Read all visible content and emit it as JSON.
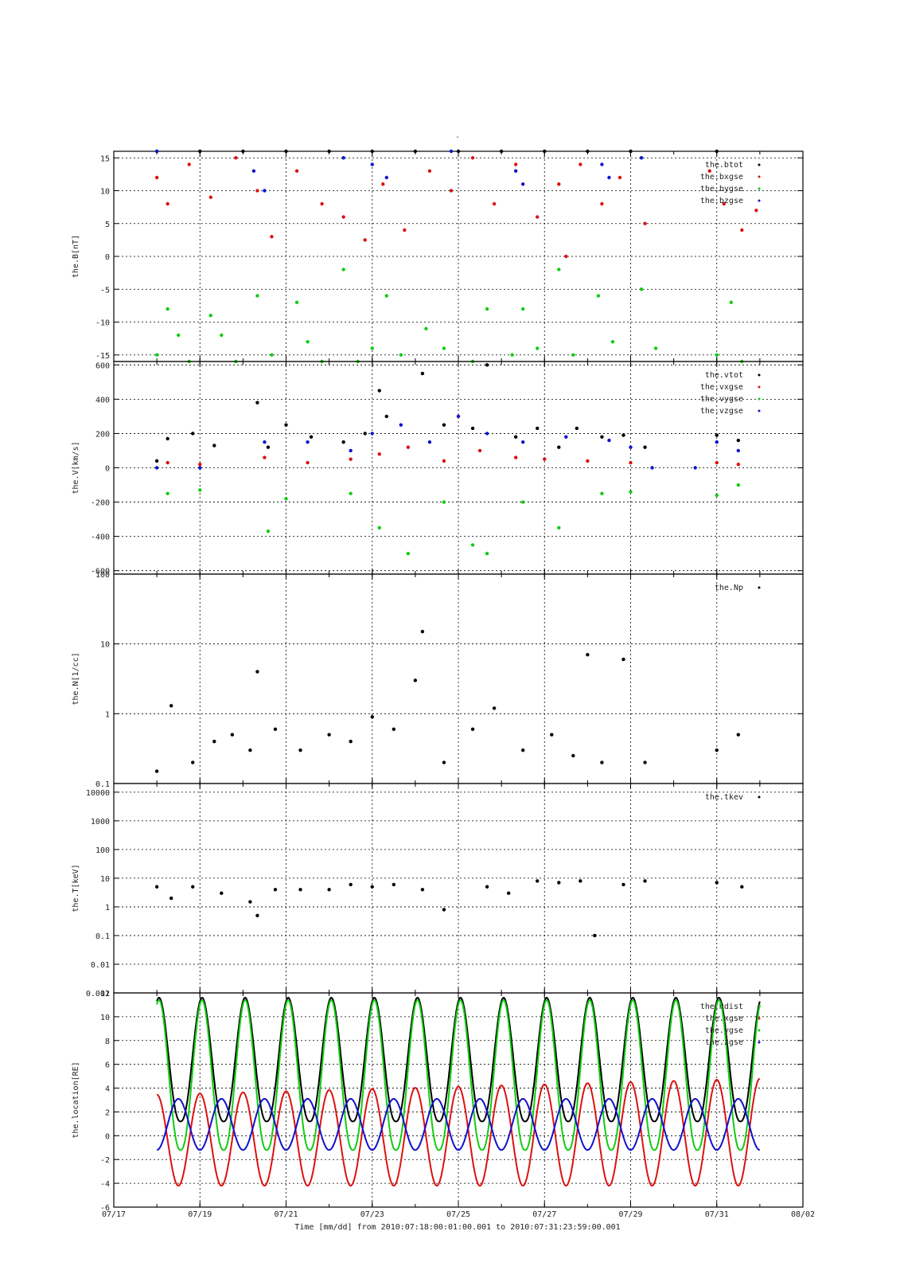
{
  "figure": {
    "title": "-",
    "xlabel": "Time [mm/dd]  from 2010:07:18:00:01:00.001  to  2010:07:31:23:59:00.001",
    "x_ticks": [
      "07/17",
      "07/19",
      "07/21",
      "07/23",
      "07/25",
      "07/27",
      "07/29",
      "07/31",
      "08/02"
    ],
    "xlim_days": [
      "07/17",
      "08/02"
    ],
    "grid": true
  },
  "chart_data": [
    {
      "id": "B",
      "type": "scatter",
      "ylabel": "the.B[nT]",
      "ylim": [
        -16,
        16
      ],
      "y_scale": "linear",
      "y_ticks": [
        -15,
        -10,
        -5,
        0,
        5,
        10,
        15
      ],
      "legend_position": "top-right",
      "series": [
        {
          "name": "the.btot",
          "color": "#000000",
          "x": [
            "07/18 00:00",
            "07/19 00:00",
            "07/20 00:00",
            "07/21 00:00",
            "07/22 00:00",
            "07/23 00:00",
            "07/24 00:00",
            "07/25 00:00",
            "07/26 00:00",
            "07/27 00:00",
            "07/28 00:00",
            "07/29 00:00",
            "07/31 00:00"
          ],
          "y": [
            16,
            16,
            16,
            16,
            16,
            16,
            16,
            16,
            16,
            16,
            16,
            16,
            16
          ]
        },
        {
          "name": "the.bxgse",
          "color": "#dd1111",
          "x": [
            "07/18 00:00",
            "07/18 06:00",
            "07/18 18:00",
            "07/19 06:00",
            "07/19 20:00",
            "07/20 08:00",
            "07/20 16:00",
            "07/21 06:00",
            "07/21 20:00",
            "07/22 08:00",
            "07/22 20:00",
            "07/23 06:00",
            "07/23 18:00",
            "07/24 08:00",
            "07/24 20:00",
            "07/25 08:00",
            "07/25 20:00",
            "07/26 08:00",
            "07/26 20:00",
            "07/27 08:00",
            "07/27 12:00",
            "07/27 20:00",
            "07/28 08:00",
            "07/28 18:00",
            "07/29 08:00",
            "07/30 20:00",
            "07/31 04:00",
            "07/31 14:00",
            "07/31 22:00"
          ],
          "y": [
            12,
            8,
            14,
            9,
            15,
            10,
            3,
            13,
            8,
            6,
            2.5,
            11,
            4,
            13,
            10,
            15,
            8,
            14,
            6,
            11,
            0,
            14,
            8,
            12,
            5,
            13,
            8,
            4,
            7
          ]
        },
        {
          "name": "the.bygse",
          "color": "#11cc11",
          "x": [
            "07/18 00:00",
            "07/18 06:00",
            "07/18 12:00",
            "07/18 18:00",
            "07/19 06:00",
            "07/19 12:00",
            "07/19 20:00",
            "07/20 08:00",
            "07/20 16:00",
            "07/21 06:00",
            "07/21 12:00",
            "07/21 20:00",
            "07/22 08:00",
            "07/22 16:00",
            "07/23 00:00",
            "07/23 08:00",
            "07/23 16:00",
            "07/24 06:00",
            "07/24 16:00",
            "07/25 08:00",
            "07/25 16:00",
            "07/26 06:00",
            "07/26 12:00",
            "07/26 20:00",
            "07/27 08:00",
            "07/27 16:00",
            "07/28 06:00",
            "07/28 14:00",
            "07/29 06:00",
            "07/29 14:00",
            "07/31 00:00",
            "07/31 08:00",
            "07/31 14:00"
          ],
          "y": [
            -15,
            -8,
            -12,
            -16,
            -9,
            -12,
            -16,
            -6,
            -15,
            -7,
            -13,
            -16,
            -2,
            -16,
            -14,
            -6,
            -15,
            -11,
            -14,
            -16,
            -8,
            -15,
            -8,
            -14,
            -2,
            -15,
            -6,
            -13,
            -5,
            -14,
            -15,
            -7,
            -16
          ]
        },
        {
          "name": "the.bzgse",
          "color": "#1111cc",
          "x": [
            "07/18 00:00",
            "07/20 06:00",
            "07/20 12:00",
            "07/22 08:00",
            "07/23 00:00",
            "07/23 08:00",
            "07/24 20:00",
            "07/26 08:00",
            "07/26 12:00",
            "07/28 08:00",
            "07/28 12:00",
            "07/29 06:00"
          ],
          "y": [
            16,
            13,
            10,
            15,
            14,
            12,
            16,
            13,
            11,
            14,
            12,
            15
          ]
        }
      ]
    },
    {
      "id": "V",
      "type": "scatter",
      "ylabel": "the.V[km/s]",
      "ylim": [
        -620,
        620
      ],
      "y_scale": "linear",
      "y_ticks": [
        -600,
        -400,
        -200,
        0,
        200,
        400,
        600
      ],
      "legend_position": "top-right",
      "series": [
        {
          "name": "the.vtot",
          "color": "#000000",
          "x": [
            "07/18 00:00",
            "07/18 06:00",
            "07/18 20:00",
            "07/19 08:00",
            "07/20 08:00",
            "07/20 14:00",
            "07/21 00:00",
            "07/21 14:00",
            "07/22 08:00",
            "07/22 20:00",
            "07/23 04:00",
            "07/23 08:00",
            "07/24 04:00",
            "07/24 16:00",
            "07/25 08:00",
            "07/25 16:00",
            "07/26 08:00",
            "07/26 20:00",
            "07/27 08:00",
            "07/27 18:00",
            "07/28 08:00",
            "07/28 20:00",
            "07/29 08:00",
            "07/31 00:00",
            "07/31 12:00"
          ],
          "y": [
            40,
            170,
            200,
            130,
            380,
            120,
            250,
            180,
            150,
            200,
            450,
            300,
            550,
            250,
            230,
            600,
            180,
            230,
            120,
            230,
            180,
            190,
            120,
            190,
            160
          ]
        },
        {
          "name": "the.vxgse",
          "color": "#dd1111",
          "x": [
            "07/18 06:00",
            "07/19 00:00",
            "07/20 12:00",
            "07/21 12:00",
            "07/22 12:00",
            "07/23 04:00",
            "07/23 20:00",
            "07/24 16:00",
            "07/25 12:00",
            "07/26 08:00",
            "07/27 00:00",
            "07/28 00:00",
            "07/29 00:00",
            "07/31 00:00",
            "07/31 12:00"
          ],
          "y": [
            30,
            20,
            60,
            30,
            50,
            80,
            120,
            40,
            100,
            60,
            50,
            40,
            30,
            30,
            20
          ]
        },
        {
          "name": "the.vygse",
          "color": "#11cc11",
          "x": [
            "07/18 06:00",
            "07/19 00:00",
            "07/20 14:00",
            "07/21 00:00",
            "07/22 12:00",
            "07/23 04:00",
            "07/23 20:00",
            "07/24 16:00",
            "07/25 08:00",
            "07/25 16:00",
            "07/26 12:00",
            "07/27 08:00",
            "07/28 08:00",
            "07/29 00:00",
            "07/31 00:00",
            "07/31 12:00"
          ],
          "y": [
            -150,
            -130,
            -370,
            -180,
            -150,
            -350,
            -500,
            -200,
            -450,
            -500,
            -200,
            -350,
            -150,
            -140,
            -160,
            -100
          ]
        },
        {
          "name": "the.vzgse",
          "color": "#1111cc",
          "x": [
            "07/18 00:00",
            "07/19 00:00",
            "07/20 12:00",
            "07/21 12:00",
            "07/22 12:00",
            "07/23 00:00",
            "07/23 16:00",
            "07/24 08:00",
            "07/25 00:00",
            "07/25 16:00",
            "07/26 12:00",
            "07/27 12:00",
            "07/28 12:00",
            "07/29 00:00",
            "07/29 12:00",
            "07/30 12:00",
            "07/31 00:00",
            "07/31 12:00"
          ],
          "y": [
            0,
            0,
            150,
            150,
            100,
            200,
            250,
            150,
            300,
            200,
            150,
            180,
            160,
            120,
            0,
            0,
            150,
            100
          ]
        }
      ]
    },
    {
      "id": "N",
      "type": "scatter",
      "ylabel": "the.N[1/cc]",
      "ylim": [
        0.1,
        100
      ],
      "y_scale": "log",
      "y_ticks": [
        0.1,
        1,
        10,
        100
      ],
      "legend_position": "top-right",
      "series": [
        {
          "name": "the.Np",
          "color": "#000000",
          "x": [
            "07/18 00:00",
            "07/18 08:00",
            "07/18 20:00",
            "07/19 08:00",
            "07/19 18:00",
            "07/20 04:00",
            "07/20 08:00",
            "07/20 18:00",
            "07/21 08:00",
            "07/22 00:00",
            "07/22 12:00",
            "07/23 00:00",
            "07/23 12:00",
            "07/24 00:00",
            "07/24 04:00",
            "07/24 16:00",
            "07/25 08:00",
            "07/25 20:00",
            "07/26 12:00",
            "07/27 04:00",
            "07/27 16:00",
            "07/28 00:00",
            "07/28 08:00",
            "07/28 20:00",
            "07/29 08:00",
            "07/31 00:00",
            "07/31 12:00"
          ],
          "y": [
            0.15,
            1.3,
            0.2,
            0.4,
            0.5,
            0.3,
            4.0,
            0.6,
            0.3,
            0.5,
            0.4,
            0.9,
            0.6,
            3.0,
            15,
            0.2,
            0.6,
            1.2,
            0.3,
            0.5,
            0.25,
            7,
            0.2,
            6,
            0.2,
            0.3,
            0.5
          ]
        }
      ]
    },
    {
      "id": "T",
      "type": "scatter",
      "ylabel": "the.T[keV]",
      "ylim": [
        0.001,
        20000
      ],
      "y_scale": "log",
      "y_ticks": [
        0.001,
        0.01,
        0.1,
        1,
        10,
        100,
        1000,
        10000
      ],
      "legend_position": "top-right",
      "series": [
        {
          "name": "the.tkev",
          "color": "#000000",
          "x": [
            "07/18 00:00",
            "07/18 08:00",
            "07/18 20:00",
            "07/19 12:00",
            "07/20 04:00",
            "07/20 08:00",
            "07/20 18:00",
            "07/21 08:00",
            "07/22 00:00",
            "07/22 12:00",
            "07/23 00:00",
            "07/23 12:00",
            "07/24 04:00",
            "07/24 16:00",
            "07/25 16:00",
            "07/26 04:00",
            "07/26 20:00",
            "07/27 08:00",
            "07/27 20:00",
            "07/28 04:00",
            "07/28 20:00",
            "07/29 08:00",
            "07/31 00:00",
            "07/31 14:00"
          ],
          "y": [
            5,
            2,
            5,
            3,
            1.5,
            0.5,
            4,
            4,
            4,
            6,
            5,
            6,
            4,
            0.8,
            5,
            3,
            8,
            7,
            8,
            0.1,
            6,
            8,
            7,
            5
          ]
        }
      ]
    },
    {
      "id": "location",
      "type": "line",
      "ylabel": "the.location[RE]",
      "ylim": [
        -6,
        12
      ],
      "y_scale": "linear",
      "y_ticks": [
        -6,
        -4,
        -2,
        0,
        2,
        4,
        6,
        8,
        10,
        12
      ],
      "legend_position": "top-right",
      "orbit_period_days": 1.0,
      "series": [
        {
          "name": "the.Rdist",
          "color": "#000000",
          "min": 1.2,
          "max": 11.6
        },
        {
          "name": "the.xgse",
          "color": "#dd1111",
          "min": -4.2,
          "max": 4.8
        },
        {
          "name": "the.ygse",
          "color": "#11cc11",
          "min": -1.2,
          "max": 11.4
        },
        {
          "name": "the.zgse",
          "color": "#1111cc",
          "min": -1.2,
          "max": 3.1
        }
      ]
    }
  ]
}
